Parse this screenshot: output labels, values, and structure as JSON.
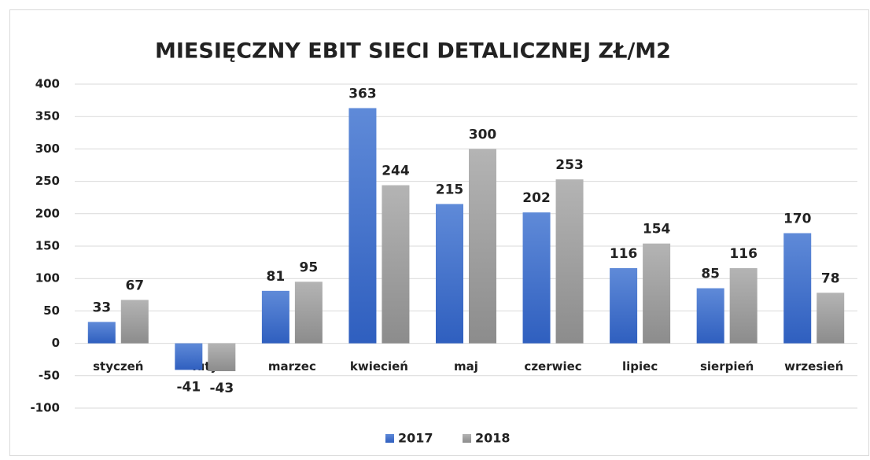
{
  "chart_data": {
    "type": "bar",
    "title": "MIESIĘCZNY EBIT SIECI DETALICZNEJ ZŁ/M2",
    "categories": [
      "styczeń",
      "luty",
      "marzec",
      "kwiecień",
      "maj",
      "czerwiec",
      "lipiec",
      "sierpień",
      "wrzesień"
    ],
    "series": [
      {
        "name": "2017",
        "color": "#4472c4",
        "values": [
          33,
          -41,
          81,
          363,
          215,
          202,
          116,
          85,
          170
        ]
      },
      {
        "name": "2018",
        "color": "#a5a5a5",
        "values": [
          67,
          -43,
          95,
          244,
          300,
          253,
          154,
          116,
          78
        ]
      }
    ],
    "ylim": [
      -100,
      400
    ],
    "yticks": [
      -100,
      -50,
      0,
      50,
      100,
      150,
      200,
      250,
      300,
      350,
      400
    ],
    "grid": true,
    "legend": "bottom"
  }
}
